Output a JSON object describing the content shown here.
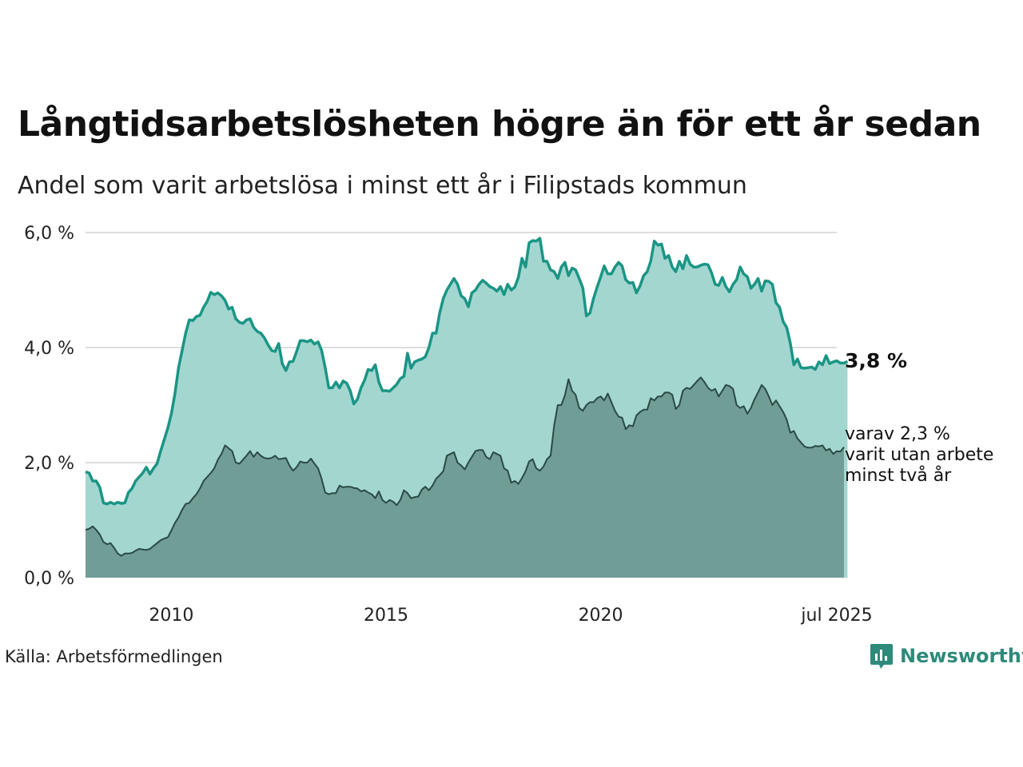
{
  "title": "Långtidsarbetslösheten högre än för ett år sedan",
  "subtitle": "Andel som varit arbetslösa i minst ett år i Filipstads kommun",
  "source": "Källa: Arbetsförmedlingen",
  "brand": {
    "name": "Newsworthy",
    "icon": "newsworthy-logo-icon"
  },
  "colors": {
    "line_total": "#1a9585",
    "fill_total": "#a4d6d0",
    "line_long": "#2a4a45",
    "fill_long": "#719d97",
    "grid": "#dddddd"
  },
  "end_label": "3,8 %",
  "note_lines": [
    "varav 2,3 %",
    "varit utan arbete",
    "minst två år"
  ],
  "chart_data": {
    "type": "area",
    "x_start": "2008-01",
    "x_end": "2025-07",
    "frequency": "monthly",
    "ylim": [
      0,
      6
    ],
    "y_ticks": [
      0,
      2,
      4,
      6
    ],
    "y_tick_labels": [
      "0,0 %",
      "2,0 %",
      "4,0 %",
      "6,0 %"
    ],
    "x_tick_labels": [
      {
        "date": "2010-01",
        "label": "2010"
      },
      {
        "date": "2015-01",
        "label": "2015"
      },
      {
        "date": "2020-01",
        "label": "2020"
      },
      {
        "date": "2025-07",
        "label": "jul 2025"
      }
    ],
    "grid": true,
    "series": [
      {
        "values": [
          1.84,
          1.82,
          1.68,
          1.68,
          1.57,
          1.3,
          1.28,
          1.31,
          1.28,
          1.31,
          1.29,
          1.3,
          1.48,
          1.55,
          1.68,
          1.75,
          1.82,
          1.92,
          1.8,
          1.9,
          1.98,
          2.2,
          2.4,
          2.6,
          2.85,
          3.2,
          3.65,
          3.95,
          4.25,
          4.48,
          4.47,
          4.54,
          4.56,
          4.7,
          4.8,
          4.96,
          4.92,
          4.95,
          4.9,
          4.82,
          4.67,
          4.7,
          4.5,
          4.44,
          4.42,
          4.48,
          4.5,
          4.35,
          4.28,
          4.25,
          4.17,
          4.05,
          3.95,
          3.93,
          4.07,
          3.72,
          3.6,
          3.75,
          3.76,
          3.93,
          4.12,
          4.12,
          4.1,
          4.13,
          4.06,
          4.1,
          3.95,
          3.65,
          3.3,
          3.3,
          3.4,
          3.3,
          3.42,
          3.38,
          3.25,
          3.02,
          3.1,
          3.3,
          3.43,
          3.62,
          3.6,
          3.7,
          3.4,
          3.25,
          3.25,
          3.24,
          3.3,
          3.36,
          3.46,
          3.5,
          3.9,
          3.64,
          3.75,
          3.78,
          3.8,
          3.84,
          4.0,
          4.25,
          4.25,
          4.6,
          4.85,
          5.0,
          5.1,
          5.2,
          5.1,
          4.9,
          4.85,
          4.71,
          4.95,
          5.0,
          5.1,
          5.17,
          5.12,
          5.06,
          5.03,
          4.98,
          5.06,
          4.92,
          5.1,
          5.0,
          5.05,
          5.22,
          5.55,
          5.4,
          5.82,
          5.86,
          5.85,
          5.9,
          5.5,
          5.5,
          5.35,
          5.32,
          5.2,
          5.4,
          5.48,
          5.25,
          5.38,
          5.35,
          5.2,
          5.04,
          4.55,
          4.6,
          4.85,
          5.05,
          5.23,
          5.42,
          5.28,
          5.28,
          5.4,
          5.48,
          5.42,
          5.18,
          5.12,
          5.13,
          4.95,
          5.07,
          5.25,
          5.32,
          5.5,
          5.85,
          5.78,
          5.8,
          5.55,
          5.6,
          5.4,
          5.32,
          5.5,
          5.37,
          5.6,
          5.45,
          5.4,
          5.4,
          5.43,
          5.45,
          5.44,
          5.3,
          5.1,
          5.08,
          5.22,
          5.06,
          4.97,
          5.1,
          5.18,
          5.4,
          5.28,
          5.23,
          5.03,
          5.1,
          5.2,
          4.98,
          5.16,
          5.15,
          5.1,
          4.78,
          4.7,
          4.45,
          4.35,
          4.08,
          3.7,
          3.8,
          3.65,
          3.64,
          3.65,
          3.66,
          3.62,
          3.75,
          3.7,
          3.86,
          3.72,
          3.75,
          3.77,
          3.73,
          3.73,
          3.76
        ],
        "line_color": "#1a9585",
        "fill_color": "#a4d6d0"
      },
      {
        "values": [
          0.83,
          0.85,
          0.89,
          0.83,
          0.75,
          0.62,
          0.58,
          0.6,
          0.52,
          0.42,
          0.38,
          0.42,
          0.42,
          0.43,
          0.47,
          0.5,
          0.49,
          0.48,
          0.5,
          0.55,
          0.6,
          0.65,
          0.68,
          0.7,
          0.82,
          0.95,
          1.05,
          1.18,
          1.28,
          1.3,
          1.38,
          1.45,
          1.55,
          1.68,
          1.75,
          1.82,
          1.9,
          2.05,
          2.15,
          2.3,
          2.25,
          2.2,
          2.0,
          1.98,
          2.05,
          2.12,
          2.2,
          2.1,
          2.18,
          2.12,
          2.08,
          2.07,
          2.08,
          2.12,
          2.06,
          2.07,
          2.08,
          1.95,
          1.86,
          1.92,
          2.02,
          2.0,
          2.0,
          2.07,
          1.98,
          1.9,
          1.72,
          1.48,
          1.45,
          1.47,
          1.47,
          1.6,
          1.57,
          1.58,
          1.58,
          1.56,
          1.55,
          1.5,
          1.52,
          1.48,
          1.45,
          1.38,
          1.5,
          1.35,
          1.3,
          1.35,
          1.32,
          1.26,
          1.35,
          1.52,
          1.47,
          1.38,
          1.4,
          1.41,
          1.53,
          1.58,
          1.52,
          1.6,
          1.72,
          1.78,
          1.85,
          2.12,
          2.15,
          2.18,
          2.0,
          1.95,
          1.88,
          2.0,
          2.1,
          2.2,
          2.22,
          2.22,
          2.1,
          2.06,
          2.18,
          2.15,
          2.12,
          1.9,
          1.86,
          1.65,
          1.68,
          1.63,
          1.73,
          1.85,
          2.02,
          2.06,
          1.9,
          1.86,
          1.93,
          2.06,
          2.12,
          2.65,
          3.0,
          3.0,
          3.17,
          3.45,
          3.25,
          3.18,
          2.95,
          2.9,
          3.0,
          3.05,
          3.05,
          3.12,
          3.15,
          3.08,
          3.2,
          3.05,
          2.9,
          2.8,
          2.78,
          2.58,
          2.65,
          2.63,
          2.82,
          2.88,
          2.92,
          2.92,
          3.12,
          3.08,
          3.15,
          3.15,
          3.22,
          3.22,
          3.18,
          2.93,
          3.0,
          3.25,
          3.3,
          3.28,
          3.35,
          3.42,
          3.48,
          3.4,
          3.3,
          3.25,
          3.28,
          3.15,
          3.25,
          3.35,
          3.33,
          3.28,
          3.0,
          2.95,
          2.98,
          2.85,
          2.95,
          3.1,
          3.22,
          3.35,
          3.28,
          3.15,
          3.0,
          3.08,
          2.98,
          2.88,
          2.75,
          2.52,
          2.55,
          2.42,
          2.35,
          2.28,
          2.26,
          2.26,
          2.29,
          2.28,
          2.3,
          2.21,
          2.24,
          2.15,
          2.2,
          2.19,
          2.27
        ],
        "line_color": "#2a4a45",
        "fill_color": "#719d97"
      }
    ]
  }
}
